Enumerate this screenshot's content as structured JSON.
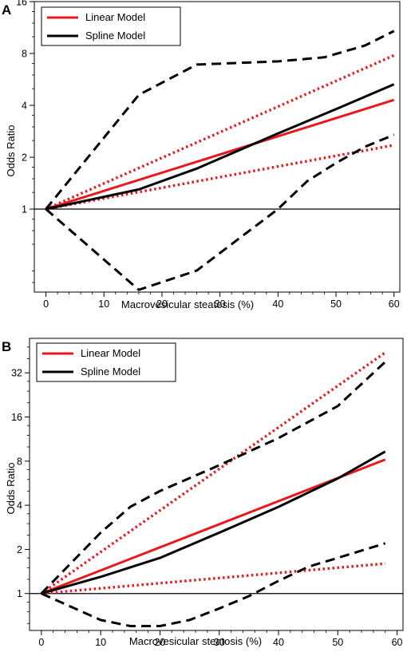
{
  "chart_data": [
    {
      "panel_label": "A",
      "type": "line",
      "xlabel": "Macrovesicular steatosis (%)",
      "ylabel": "Odds Ratio",
      "x_ticks": [
        0,
        10,
        20,
        30,
        40,
        50,
        60
      ],
      "y_ticks": [
        1,
        2,
        4,
        8,
        16
      ],
      "y_scale": "log2",
      "xlim": [
        -2,
        61
      ],
      "ylim": [
        0.33,
        16
      ],
      "reference_line": 1,
      "legend": {
        "position": "top-left",
        "entries": [
          "Linear Model",
          "Spline Model"
        ]
      },
      "series": [
        {
          "name": "Linear Model",
          "color": "#e8191c",
          "style": "solid",
          "x": [
            0,
            60
          ],
          "y": [
            1,
            4.3
          ]
        },
        {
          "color": "#e8191c",
          "style": "dotted",
          "x": [
            0,
            60
          ],
          "y": [
            1,
            7.8
          ]
        },
        {
          "color": "#e8191c",
          "style": "dotted",
          "x": [
            0,
            60
          ],
          "y": [
            1,
            2.35
          ]
        },
        {
          "name": "Spline Model",
          "color": "#000000",
          "style": "solid",
          "x": [
            0,
            16,
            26,
            40,
            50,
            60
          ],
          "y": [
            1,
            1.3,
            1.72,
            2.75,
            3.8,
            5.3
          ]
        },
        {
          "color": "#000000",
          "style": "dashed",
          "x": [
            0,
            16,
            26,
            40,
            48,
            55,
            60
          ],
          "y": [
            1,
            4.6,
            6.9,
            7.2,
            7.6,
            8.9,
            10.8
          ]
        },
        {
          "color": "#000000",
          "style": "dashed",
          "x": [
            0,
            16,
            26,
            40,
            45,
            50,
            55,
            60
          ],
          "y": [
            1,
            0.34,
            0.44,
            1.0,
            1.45,
            1.85,
            2.3,
            2.7
          ]
        }
      ]
    },
    {
      "panel_label": "B",
      "type": "line",
      "xlabel": "Macrovesicular steatosis (%)",
      "ylabel": "Odds Ratio",
      "x_ticks": [
        0,
        10,
        20,
        30,
        40,
        50,
        60
      ],
      "y_ticks": [
        1,
        2,
        4,
        8,
        16,
        32
      ],
      "y_scale": "log2",
      "xlim": [
        -2,
        61
      ],
      "ylim": [
        0.56,
        55
      ],
      "reference_line": 1,
      "legend": {
        "position": "top-left",
        "entries": [
          "Linear Model",
          "Spline Model"
        ]
      },
      "series": [
        {
          "name": "Linear Model",
          "color": "#e8191c",
          "style": "solid",
          "x": [
            0,
            58
          ],
          "y": [
            1,
            8.2
          ]
        },
        {
          "color": "#e8191c",
          "style": "dotted",
          "x": [
            0,
            58
          ],
          "y": [
            1,
            44
          ]
        },
        {
          "color": "#e8191c",
          "style": "dotted",
          "x": [
            0,
            58
          ],
          "y": [
            1,
            1.6
          ]
        },
        {
          "name": "Spline Model",
          "color": "#000000",
          "style": "solid",
          "x": [
            0,
            10,
            20,
            30,
            40,
            50,
            58
          ],
          "y": [
            1,
            1.3,
            1.75,
            2.6,
            3.9,
            6.1,
            9.3
          ]
        },
        {
          "color": "#000000",
          "style": "dashed",
          "x": [
            0,
            10,
            15,
            20,
            30,
            40,
            50,
            58
          ],
          "y": [
            1,
            2.6,
            3.9,
            5.0,
            7.5,
            11.5,
            19,
            38
          ]
        },
        {
          "color": "#000000",
          "style": "dashed",
          "x": [
            0,
            10,
            15,
            20,
            25,
            30,
            35,
            40,
            45,
            50,
            58
          ],
          "y": [
            1,
            0.66,
            0.6,
            0.6,
            0.66,
            0.79,
            0.96,
            1.22,
            1.52,
            1.75,
            2.2
          ]
        }
      ]
    }
  ]
}
